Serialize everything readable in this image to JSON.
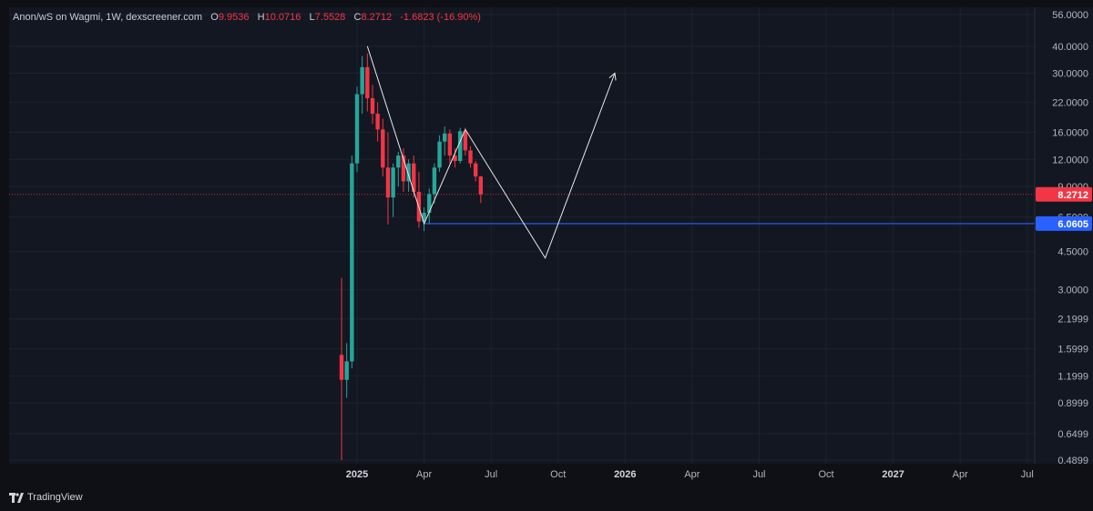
{
  "header": {
    "symbol": "Anon/wS on Wagmi, 1W, dexscreener.com",
    "ohlc": [
      {
        "label": "O",
        "value": "9.9536"
      },
      {
        "label": "H",
        "value": "10.0716"
      },
      {
        "label": "L",
        "value": "7.5528"
      },
      {
        "label": "C",
        "value": "8.2712"
      }
    ],
    "change": "-1.6823 (-16.90%)"
  },
  "footer": {
    "brand": "TradingView",
    "logo_icon": "tradingview-logo-icon"
  },
  "colors": {
    "background": "#0f1016",
    "plot_background": "#131722",
    "grid": "#1e222d",
    "up": "#26a69a",
    "down": "#f23645",
    "support": "#2962ff",
    "drawing": "#e8e8e8",
    "axis_text": "#b2b5be"
  },
  "chart_data": {
    "type": "candlestick",
    "scale": "log",
    "ylim": [
      0.4899,
      56.0
    ],
    "y_ticks": [
      "56.0000",
      "40.0000",
      "30.0000",
      "22.0000",
      "16.0000",
      "12.0000",
      "9.0000",
      "6.5000",
      "4.5000",
      "3.0000",
      "2.1999",
      "1.5999",
      "1.1999",
      "0.8999",
      "0.6499",
      "0.4899"
    ],
    "x_ticks": [
      "2025",
      "Apr",
      "Jul",
      "Oct",
      "2026",
      "Apr",
      "Jul",
      "Oct",
      "2027",
      "Apr",
      "Jul"
    ],
    "x_tick_weeks": [
      0,
      13,
      26,
      39,
      52,
      65,
      78,
      91,
      104,
      117,
      130
    ],
    "x_tick_bold": [
      true,
      false,
      false,
      false,
      true,
      false,
      false,
      false,
      true,
      false,
      false
    ],
    "current_price": {
      "value": 8.2712,
      "label": "8.2712"
    },
    "support_level": {
      "value": 6.0605,
      "label": "6.0605"
    },
    "candles": [
      {
        "w": -3,
        "o": 1.5,
        "h": 3.4,
        "l": 0.49,
        "c": 1.15
      },
      {
        "w": -2,
        "o": 1.15,
        "h": 1.7,
        "l": 0.95,
        "c": 1.4
      },
      {
        "w": -1,
        "o": 1.4,
        "h": 12.5,
        "l": 1.3,
        "c": 11.5
      },
      {
        "w": 0,
        "o": 11.5,
        "h": 26.0,
        "l": 10.5,
        "c": 24.0
      },
      {
        "w": 1,
        "o": 24.0,
        "h": 36.0,
        "l": 19.5,
        "c": 32.0
      },
      {
        "w": 2,
        "o": 32.0,
        "h": 37.0,
        "l": 20.0,
        "c": 23.0
      },
      {
        "w": 3,
        "o": 23.0,
        "h": 26.5,
        "l": 17.5,
        "c": 19.5
      },
      {
        "w": 4,
        "o": 19.5,
        "h": 22.0,
        "l": 14.5,
        "c": 16.5
      },
      {
        "w": 5,
        "o": 16.5,
        "h": 18.5,
        "l": 10.0,
        "c": 11.0
      },
      {
        "w": 6,
        "o": 11.0,
        "h": 16.0,
        "l": 6.0,
        "c": 8.0
      },
      {
        "w": 7,
        "o": 8.0,
        "h": 11.5,
        "l": 6.5,
        "c": 11.0
      },
      {
        "w": 8,
        "o": 11.0,
        "h": 13.0,
        "l": 9.0,
        "c": 12.5
      },
      {
        "w": 9,
        "o": 12.5,
        "h": 13.5,
        "l": 8.5,
        "c": 9.5
      },
      {
        "w": 10,
        "o": 9.5,
        "h": 12.0,
        "l": 8.5,
        "c": 11.5
      },
      {
        "w": 11,
        "o": 11.5,
        "h": 12.5,
        "l": 8.0,
        "c": 8.5
      },
      {
        "w": 12,
        "o": 8.5,
        "h": 10.5,
        "l": 5.8,
        "c": 6.2
      },
      {
        "w": 13,
        "o": 6.2,
        "h": 7.2,
        "l": 5.6,
        "c": 6.8
      },
      {
        "w": 14,
        "o": 6.8,
        "h": 8.8,
        "l": 6.0,
        "c": 8.3
      },
      {
        "w": 15,
        "o": 8.3,
        "h": 11.5,
        "l": 7.5,
        "c": 11.0
      },
      {
        "w": 16,
        "o": 11.0,
        "h": 15.5,
        "l": 10.5,
        "c": 14.5
      },
      {
        "w": 17,
        "o": 14.5,
        "h": 17.0,
        "l": 12.5,
        "c": 15.8
      },
      {
        "w": 18,
        "o": 15.8,
        "h": 16.5,
        "l": 11.5,
        "c": 12.5
      },
      {
        "w": 19,
        "o": 12.5,
        "h": 13.5,
        "l": 11.0,
        "c": 11.8
      },
      {
        "w": 20,
        "o": 11.8,
        "h": 16.8,
        "l": 11.5,
        "c": 16.2
      },
      {
        "w": 21,
        "o": 16.2,
        "h": 16.8,
        "l": 12.5,
        "c": 13.2
      },
      {
        "w": 22,
        "o": 13.2,
        "h": 13.8,
        "l": 11.0,
        "c": 11.5
      },
      {
        "w": 23,
        "o": 11.5,
        "h": 11.8,
        "l": 9.5,
        "c": 10.0
      },
      {
        "w": 24,
        "o": 10.0,
        "h": 10.07,
        "l": 7.55,
        "c": 8.2712
      }
    ],
    "drawing": {
      "pattern": [
        {
          "w": 2.0,
          "v": 40.0
        },
        {
          "w": 13.0,
          "v": 6.06
        },
        {
          "w": 21.0,
          "v": 16.5
        },
        {
          "w": 36.5,
          "v": 4.2
        },
        {
          "w": 50.0,
          "v": 30.0
        }
      ],
      "support_start_week": 13.0
    }
  }
}
